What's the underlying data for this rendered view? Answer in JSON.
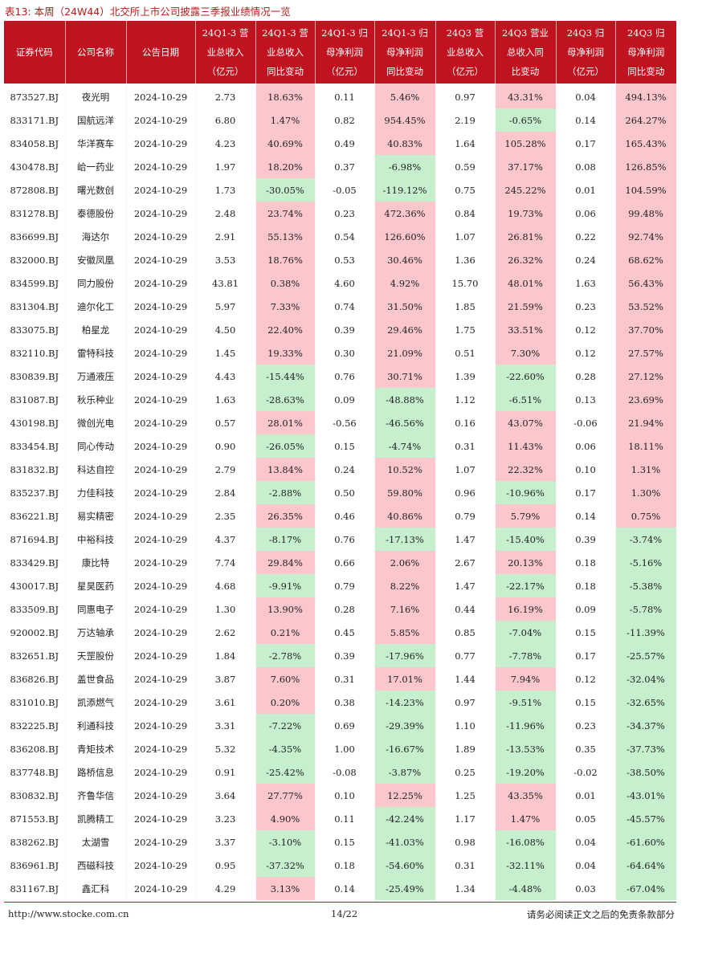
{
  "caption": "表13:  本周（24W44）北交所上市公司披露三季报业绩情况一览",
  "headers": [
    [
      "证券代码"
    ],
    [
      "公司名称"
    ],
    [
      "公告日期"
    ],
    [
      "24Q1-3 营",
      "业总收入",
      "（亿元）"
    ],
    [
      "24Q1-3 营",
      "业总收入",
      "同比变动"
    ],
    [
      "24Q1-3 归",
      "母净利润",
      "（亿元）"
    ],
    [
      "24Q1-3 归",
      "母净利润",
      "同比变动"
    ],
    [
      "24Q3 营",
      "业总收入",
      "（亿元）"
    ],
    [
      "24Q3 营业",
      "总收入同",
      "比变动"
    ],
    [
      "24Q3 归",
      "母净利润",
      "（亿元）"
    ],
    [
      "24Q3 归",
      "母净利润",
      "同比变动"
    ]
  ],
  "rows": [
    [
      "873527.BJ",
      "夜光明",
      "2024-10-29",
      "2.73",
      "18.63%",
      "0.11",
      "5.46%",
      "0.97",
      "43.31%",
      "0.04",
      "494.13%"
    ],
    [
      "833171.BJ",
      "国航远洋",
      "2024-10-29",
      "6.80",
      "1.47%",
      "0.82",
      "954.45%",
      "2.19",
      "-0.65%",
      "0.14",
      "264.27%"
    ],
    [
      "834058.BJ",
      "华洋赛车",
      "2024-10-29",
      "4.23",
      "40.69%",
      "0.49",
      "40.83%",
      "1.64",
      "105.28%",
      "0.17",
      "165.43%"
    ],
    [
      "430478.BJ",
      "峆一药业",
      "2024-10-29",
      "1.97",
      "18.20%",
      "0.37",
      "-6.98%",
      "0.59",
      "37.17%",
      "0.08",
      "126.85%"
    ],
    [
      "872808.BJ",
      "曙光数创",
      "2024-10-29",
      "1.73",
      "-30.05%",
      "-0.05",
      "-119.12%",
      "0.75",
      "245.22%",
      "0.01",
      "104.59%"
    ],
    [
      "831278.BJ",
      "泰德股份",
      "2024-10-29",
      "2.48",
      "23.74%",
      "0.23",
      "472.36%",
      "0.84",
      "19.73%",
      "0.06",
      "99.48%"
    ],
    [
      "836699.BJ",
      "海达尔",
      "2024-10-29",
      "2.91",
      "55.13%",
      "0.54",
      "126.60%",
      "1.07",
      "26.81%",
      "0.22",
      "92.74%"
    ],
    [
      "832000.BJ",
      "安徽凤凰",
      "2024-10-29",
      "3.53",
      "18.76%",
      "0.53",
      "30.46%",
      "1.36",
      "26.32%",
      "0.24",
      "68.62%"
    ],
    [
      "834599.BJ",
      "同力股份",
      "2024-10-29",
      "43.81",
      "0.38%",
      "4.60",
      "4.92%",
      "15.70",
      "48.01%",
      "1.63",
      "56.43%"
    ],
    [
      "831304.BJ",
      "迪尔化工",
      "2024-10-29",
      "5.97",
      "7.33%",
      "0.74",
      "31.50%",
      "1.85",
      "21.59%",
      "0.23",
      "53.52%"
    ],
    [
      "833075.BJ",
      "柏星龙",
      "2024-10-29",
      "4.50",
      "22.40%",
      "0.39",
      "29.46%",
      "1.75",
      "33.51%",
      "0.12",
      "37.70%"
    ],
    [
      "832110.BJ",
      "雷特科技",
      "2024-10-29",
      "1.45",
      "19.33%",
      "0.30",
      "21.09%",
      "0.51",
      "7.30%",
      "0.12",
      "27.57%"
    ],
    [
      "830839.BJ",
      "万通液压",
      "2024-10-29",
      "4.43",
      "-15.44%",
      "0.76",
      "30.71%",
      "1.39",
      "-22.60%",
      "0.28",
      "27.12%"
    ],
    [
      "831087.BJ",
      "秋乐种业",
      "2024-10-29",
      "1.63",
      "-28.63%",
      "0.09",
      "-48.88%",
      "1.12",
      "-6.51%",
      "0.13",
      "23.69%"
    ],
    [
      "430198.BJ",
      "微创光电",
      "2024-10-29",
      "0.57",
      "28.01%",
      "-0.56",
      "-46.56%",
      "0.16",
      "43.07%",
      "-0.06",
      "21.94%"
    ],
    [
      "833454.BJ",
      "同心传动",
      "2024-10-29",
      "0.90",
      "-26.05%",
      "0.15",
      "-4.74%",
      "0.31",
      "11.43%",
      "0.06",
      "18.11%"
    ],
    [
      "831832.BJ",
      "科达自控",
      "2024-10-29",
      "2.79",
      "13.84%",
      "0.24",
      "10.52%",
      "1.07",
      "22.32%",
      "0.10",
      "1.31%"
    ],
    [
      "835237.BJ",
      "力佳科技",
      "2024-10-29",
      "2.84",
      "-2.88%",
      "0.50",
      "59.80%",
      "0.96",
      "-10.96%",
      "0.17",
      "1.30%"
    ],
    [
      "836221.BJ",
      "易实精密",
      "2024-10-29",
      "2.35",
      "26.35%",
      "0.46",
      "40.86%",
      "0.79",
      "5.79%",
      "0.14",
      "0.75%"
    ],
    [
      "871694.BJ",
      "中裕科技",
      "2024-10-29",
      "4.37",
      "-8.17%",
      "0.76",
      "-17.13%",
      "1.47",
      "-15.40%",
      "0.39",
      "-3.74%"
    ],
    [
      "833429.BJ",
      "康比特",
      "2024-10-29",
      "7.74",
      "29.84%",
      "0.66",
      "2.06%",
      "2.67",
      "20.13%",
      "0.18",
      "-5.16%"
    ],
    [
      "430017.BJ",
      "星昊医药",
      "2024-10-29",
      "4.68",
      "-9.91%",
      "0.79",
      "8.22%",
      "1.47",
      "-22.17%",
      "0.18",
      "-5.38%"
    ],
    [
      "833509.BJ",
      "同惠电子",
      "2024-10-29",
      "1.30",
      "13.90%",
      "0.28",
      "7.16%",
      "0.44",
      "16.19%",
      "0.09",
      "-5.78%"
    ],
    [
      "920002.BJ",
      "万达轴承",
      "2024-10-29",
      "2.62",
      "0.21%",
      "0.45",
      "5.85%",
      "0.85",
      "-7.04%",
      "0.15",
      "-11.39%"
    ],
    [
      "832651.BJ",
      "天罡股份",
      "2024-10-29",
      "1.84",
      "-2.78%",
      "0.39",
      "-17.96%",
      "0.77",
      "-7.78%",
      "0.17",
      "-25.57%"
    ],
    [
      "836826.BJ",
      "盖世食品",
      "2024-10-29",
      "3.87",
      "7.60%",
      "0.31",
      "17.01%",
      "1.44",
      "7.94%",
      "0.12",
      "-32.04%"
    ],
    [
      "831010.BJ",
      "凯添燃气",
      "2024-10-29",
      "3.61",
      "0.20%",
      "0.38",
      "-14.23%",
      "0.97",
      "-9.51%",
      "0.15",
      "-32.65%"
    ],
    [
      "832225.BJ",
      "利通科技",
      "2024-10-29",
      "3.31",
      "-7.22%",
      "0.69",
      "-29.39%",
      "1.10",
      "-11.96%",
      "0.23",
      "-34.37%"
    ],
    [
      "836208.BJ",
      "青矩技术",
      "2024-10-29",
      "5.32",
      "-4.35%",
      "1.00",
      "-16.67%",
      "1.89",
      "-13.53%",
      "0.35",
      "-37.73%"
    ],
    [
      "837748.BJ",
      "路桥信息",
      "2024-10-29",
      "0.91",
      "-25.42%",
      "-0.08",
      "-3.87%",
      "0.25",
      "-19.20%",
      "-0.02",
      "-38.50%"
    ],
    [
      "830832.BJ",
      "齐鲁华信",
      "2024-10-29",
      "3.64",
      "27.77%",
      "0.10",
      "12.25%",
      "1.25",
      "43.35%",
      "0.01",
      "-43.01%"
    ],
    [
      "871553.BJ",
      "凯腾精工",
      "2024-10-29",
      "3.23",
      "4.90%",
      "0.11",
      "-42.24%",
      "1.17",
      "1.47%",
      "0.05",
      "-45.57%"
    ],
    [
      "838262.BJ",
      "太湖雪",
      "2024-10-29",
      "3.37",
      "-3.10%",
      "0.15",
      "-41.03%",
      "0.98",
      "-16.08%",
      "0.04",
      "-61.60%"
    ],
    [
      "836961.BJ",
      "西磁科技",
      "2024-10-29",
      "0.95",
      "-37.32%",
      "0.18",
      "-54.60%",
      "0.31",
      "-32.11%",
      "0.04",
      "-64.64%"
    ],
    [
      "831167.BJ",
      "鑫汇科",
      "2024-10-29",
      "4.29",
      "3.13%",
      "0.14",
      "-25.49%",
      "1.34",
      "-4.48%",
      "0.03",
      "-67.04%"
    ]
  ],
  "footer": {
    "url": "http://www.stocke.com.cn",
    "page": "14/22",
    "disclaimer": "请务必阅读正文之后的免责条款部分"
  }
}
